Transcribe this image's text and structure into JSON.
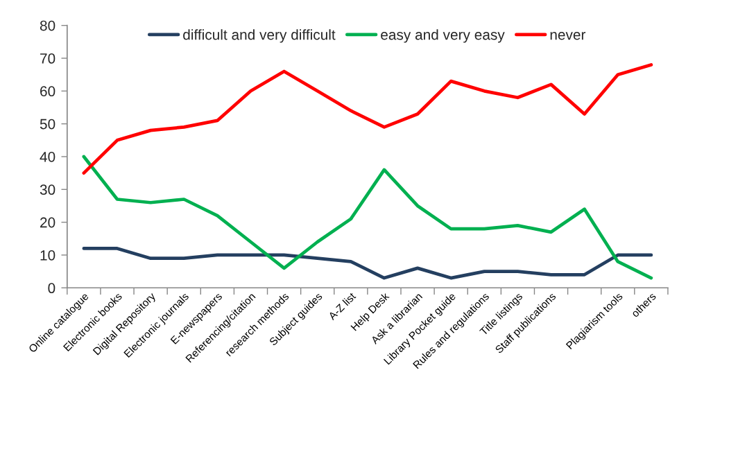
{
  "chart_data": {
    "type": "line",
    "categories": [
      "Online catalogue",
      "Electronic books",
      "Digital Repository",
      "Electronic journals",
      "E-newspapers",
      "Referencing/citation",
      "research methods",
      "Subject guides",
      "A-Z list",
      "Help Desk",
      "Ask a librarian",
      "Library Pocket guide",
      "Rules and regulations",
      "Title listings",
      "Staff publications",
      null,
      "Plagiarism tools",
      "others"
    ],
    "series": [
      {
        "name": "difficult and very difficult",
        "color": "#243f60",
        "values": [
          12,
          12,
          9,
          9,
          10,
          10,
          10,
          9,
          8,
          3,
          6,
          3,
          5,
          5,
          4,
          4,
          10,
          10
        ]
      },
      {
        "name": "easy and very easy",
        "color": "#00b050",
        "values": [
          40,
          27,
          26,
          27,
          22,
          14,
          6,
          14,
          21,
          36,
          25,
          18,
          18,
          19,
          17,
          24,
          8,
          3
        ]
      },
      {
        "name": "never",
        "color": "#ff0000",
        "values": [
          35,
          45,
          48,
          49,
          51,
          60,
          66,
          60,
          54,
          49,
          53,
          63,
          60,
          58,
          62,
          53,
          65,
          68
        ]
      }
    ],
    "ylim": [
      0,
      80
    ],
    "yticks": [
      0,
      10,
      20,
      30,
      40,
      50,
      60,
      70,
      80
    ],
    "legend": "top",
    "marker": "none",
    "line_style": "solid",
    "grid": false
  }
}
